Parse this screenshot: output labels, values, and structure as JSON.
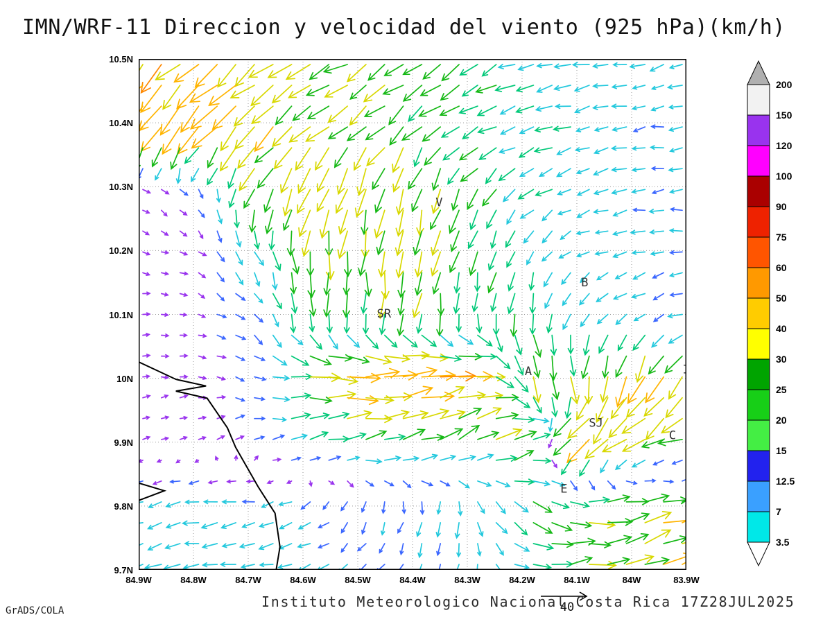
{
  "title": "IMN/WRF-11 Direccion y velocidad del viento (925 hPa)(km/h)",
  "footer": {
    "caption": "Instituto Meteorologico Nacional Costa Rica 17Z28JUL2025",
    "credit": "GrADS/COLA"
  },
  "vector_key": {
    "label": "40"
  },
  "axes": {
    "x_ticks": [
      "84.9W",
      "84.8W",
      "84.7W",
      "84.6W",
      "84.5W",
      "84.4W",
      "84.3W",
      "84.2W",
      "84.1W",
      "84W",
      "83.9W"
    ],
    "y_ticks": [
      "10.5N",
      "10.4N",
      "10.3N",
      "10.2N",
      "10.1N",
      "10N",
      "9.9N",
      "9.8N",
      "9.7N"
    ],
    "grid": "dotted"
  },
  "stations": [
    {
      "label": "V",
      "fx": 0.542,
      "fy": 0.288
    },
    {
      "label": "B",
      "fx": 0.808,
      "fy": 0.445
    },
    {
      "label": "SR",
      "fx": 0.435,
      "fy": 0.506
    },
    {
      "label": "A",
      "fx": 0.705,
      "fy": 0.619
    },
    {
      "label": "SJ",
      "fx": 0.822,
      "fy": 0.72
    },
    {
      "label": "C",
      "fx": 0.968,
      "fy": 0.744
    },
    {
      "label": "E",
      "fx": 0.77,
      "fy": 0.849
    },
    {
      "label": "I",
      "fx": 0.993,
      "fy": 0.615
    }
  ],
  "coastline": [
    [
      [
        0,
        0.593
      ],
      [
        0.068,
        0.627
      ],
      [
        0.123,
        0.64
      ],
      [
        0.068,
        0.65
      ],
      [
        0.125,
        0.664
      ],
      [
        0.162,
        0.722
      ],
      [
        0.177,
        0.76
      ],
      [
        0.218,
        0.837
      ],
      [
        0.249,
        0.889
      ],
      [
        0.258,
        0.955
      ],
      [
        0.251,
        1.0
      ]
    ],
    [
      [
        0,
        0.83
      ],
      [
        0.047,
        0.845
      ],
      [
        0,
        0.864
      ]
    ]
  ],
  "colorbar": {
    "levels": [
      3.5,
      7,
      12.5,
      15,
      20,
      25,
      30,
      40,
      50,
      60,
      75,
      90,
      100,
      120,
      150,
      200
    ],
    "band_colors_bottom_to_top": [
      "#00e8e8",
      "#3aa0ff",
      "#2222ee",
      "#44ee44",
      "#17cf17",
      "#00a400",
      "#ffff00",
      "#ffcc00",
      "#ff9900",
      "#ff5500",
      "#ee2200",
      "#aa0000",
      "#ff00ff",
      "#9933ee",
      "#f2f2f2"
    ],
    "under_color": "#ffffff",
    "over_color": "#b0b0b0"
  },
  "arrow_palette": {
    "thresholds": [
      8,
      13,
      20,
      26,
      32,
      40,
      48,
      56
    ],
    "colors": [
      "#9933ee",
      "#3a66ff",
      "#22c8dd",
      "#00c878",
      "#15b815",
      "#d8d800",
      "#ffb400",
      "#ff8800",
      "#ff5100"
    ]
  },
  "chart_data": {
    "type": "vector_field",
    "title": "IMN/WRF-11 Direccion y velocidad del viento (925 hPa)(km/h)",
    "level": "925 hPa",
    "units": "km/h",
    "valid_time": "17Z28JUL2025",
    "x_range": [
      "84.9W",
      "83.9W"
    ],
    "y_range": [
      "9.7N",
      "10.5N"
    ],
    "reference_vector_kmh": 40,
    "speed_levels": [
      3.5,
      7,
      12.5,
      15,
      20,
      25,
      30,
      40,
      50,
      60,
      75,
      90,
      100,
      120,
      150,
      200
    ],
    "grid": {
      "lons_deg_w": [
        84.9,
        84.8,
        84.7,
        84.6,
        84.5,
        84.4,
        84.3,
        84.2,
        84.1,
        84.0,
        83.9
      ],
      "lats_deg_n_top_to_bottom": [
        10.5,
        10.4,
        10.3,
        10.2,
        10.1,
        10.0,
        9.9,
        9.8,
        9.7
      ],
      "direction_toward_deg": [
        [
          225,
          228,
          232,
          238,
          242,
          238,
          232,
          252,
          262,
          258,
          252
        ],
        [
          215,
          220,
          226,
          231,
          231,
          226,
          241,
          251,
          256,
          261,
          261
        ],
        [
          120,
          140,
          200,
          207,
          198,
          190,
          211,
          231,
          251,
          261,
          266
        ],
        [
          100,
          120,
          152,
          181,
          186,
          191,
          196,
          201,
          241,
          256,
          261
        ],
        [
          90,
          101,
          131,
          171,
          181,
          186,
          171,
          181,
          201,
          231,
          251
        ],
        [
          80,
          91,
          111,
          91,
          86,
          81,
          76,
          151,
          181,
          201,
          211
        ],
        [
          70,
          81,
          61,
          81,
          76,
          71,
          66,
          61,
          231,
          241,
          251
        ],
        [
          251,
          256,
          261,
          251,
          201,
          191,
          181,
          121,
          91,
          81,
          71
        ],
        [
          256,
          261,
          266,
          256,
          231,
          211,
          201,
          101,
          81,
          71,
          61
        ]
      ],
      "speed_kmh": [
        [
          46,
          42,
          38,
          33,
          30,
          30,
          27,
          22,
          18,
          16,
          15
        ],
        [
          48,
          45,
          40,
          34,
          32,
          30,
          25,
          20,
          18,
          15,
          14
        ],
        [
          6,
          9,
          28,
          35,
          38,
          33,
          28,
          22,
          17,
          15,
          14
        ],
        [
          5,
          6,
          20,
          30,
          35,
          38,
          30,
          20,
          15,
          14,
          13
        ],
        [
          5,
          5,
          12,
          22,
          25,
          28,
          22,
          26,
          18,
          15,
          14
        ],
        [
          5,
          6,
          10,
          34,
          44,
          48,
          40,
          30,
          34,
          42,
          38
        ],
        [
          5,
          6,
          8,
          20,
          25,
          28,
          30,
          35,
          40,
          34,
          30
        ],
        [
          18,
          18,
          16,
          14,
          12,
          15,
          18,
          25,
          30,
          35,
          38
        ],
        [
          18,
          17,
          16,
          14,
          12,
          12,
          15,
          22,
          30,
          34,
          40
        ]
      ]
    },
    "render_grid": {
      "nx": 30,
      "ny": 25,
      "seed": 7
    }
  }
}
